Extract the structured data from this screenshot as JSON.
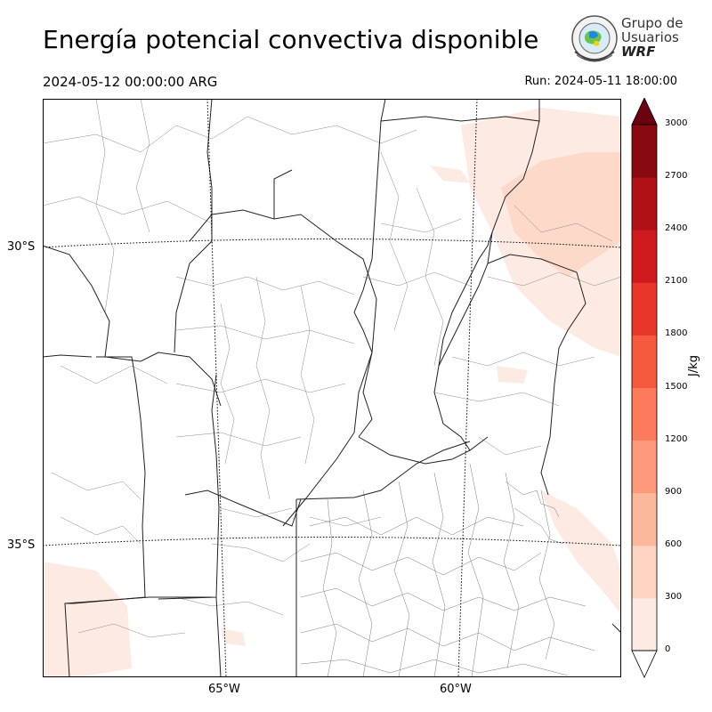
{
  "header": {
    "title": "Energía potencial convectiva disponible",
    "valid_time": "2024-05-12 00:00:00 ARG",
    "run_time": "Run: 2024-05-11 18:00:00"
  },
  "logo": {
    "line1": "Grupo de",
    "line2": "Usuarios",
    "line3": "WRF"
  },
  "map": {
    "lat_labels": [
      "30°S",
      "35°S"
    ],
    "lon_labels": [
      "65°W",
      "60°W"
    ]
  },
  "colorbar": {
    "unit": "J/kg",
    "ticks": [
      "0",
      "300",
      "600",
      "900",
      "1200",
      "1500",
      "1800",
      "2100",
      "2400",
      "2700",
      "3000"
    ],
    "colors": [
      "#fdeae2",
      "#fcd4c1",
      "#fcb89a",
      "#fc9a79",
      "#fb7b5b",
      "#f55a3f",
      "#e8372a",
      "#cf1b1d",
      "#b01117",
      "#880910",
      "#6b0013"
    ]
  }
}
